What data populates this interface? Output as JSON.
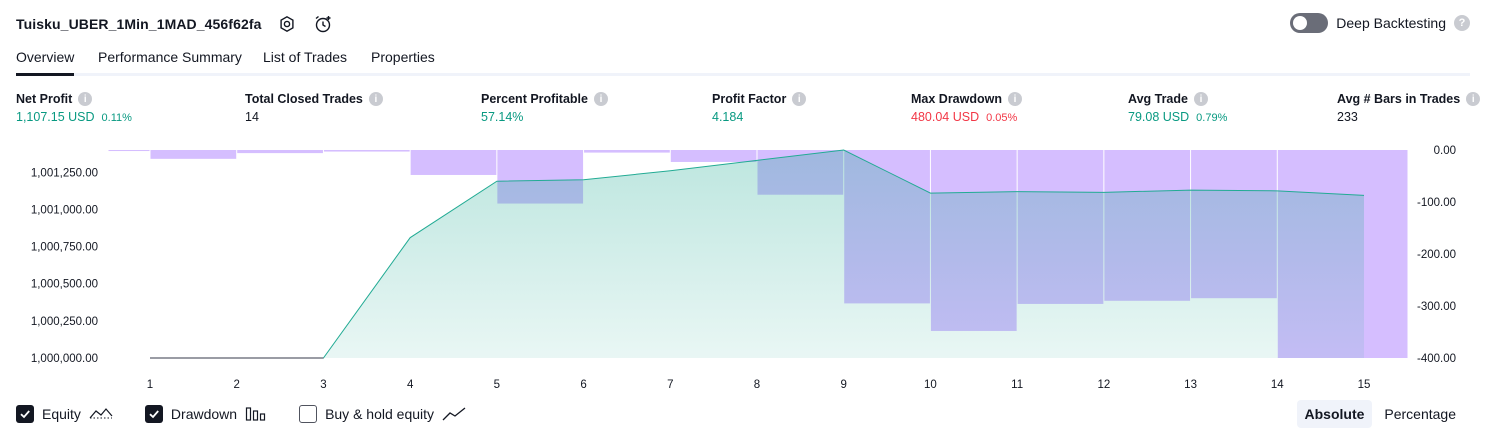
{
  "header": {
    "strategy_name": "Tuisku_UBER_1Min_1MAD_456f62fa",
    "settings_icon": "gear-icon",
    "alert_icon": "alarm-clock-add-icon",
    "deep_backtesting_label": "Deep Backtesting",
    "deep_backtesting_enabled": false
  },
  "tabs": [
    {
      "label": "Overview",
      "active": true
    },
    {
      "label": "Performance Summary",
      "active": false
    },
    {
      "label": "List of Trades",
      "active": false
    },
    {
      "label": "Properties",
      "active": false
    }
  ],
  "stats": [
    {
      "label": "Net Profit",
      "value": "1,107.15 USD",
      "pct": "0.11%",
      "color": "#089981"
    },
    {
      "label": "Total Closed Trades",
      "value": "14",
      "pct": "",
      "color": "#131722"
    },
    {
      "label": "Percent Profitable",
      "value": "57.14%",
      "pct": "",
      "color": "#089981"
    },
    {
      "label": "Profit Factor",
      "value": "4.184",
      "pct": "",
      "color": "#089981"
    },
    {
      "label": "Max Drawdown",
      "value": "480.04 USD",
      "pct": "0.05%",
      "color": "#f23645"
    },
    {
      "label": "Avg Trade",
      "value": "79.08 USD",
      "pct": "0.79%",
      "color": "#089981"
    },
    {
      "label": "Avg # Bars in Trades",
      "value": "233",
      "pct": "",
      "color": "#131722"
    }
  ],
  "chart_data": {
    "type": "area",
    "x": [
      1,
      2,
      3,
      4,
      5,
      6,
      7,
      8,
      9,
      10,
      11,
      12,
      13,
      14,
      15
    ],
    "left_axis": {
      "ticks": [
        "1,000,000.00",
        "1,000,250.00",
        "1,000,500.00",
        "1,000,750.00",
        "1,001,000.00",
        "1,001,250.00"
      ],
      "tick_values": [
        1000000,
        1000250,
        1000500,
        1000750,
        1001000,
        1001250
      ],
      "range": [
        1000000,
        1001400
      ]
    },
    "right_axis": {
      "ticks": [
        "0.00",
        "-100.00",
        "-200.00",
        "-300.00",
        "-400.00"
      ],
      "tick_values": [
        0,
        -100,
        -200,
        -300,
        -400
      ],
      "range": [
        -400,
        0
      ]
    },
    "series": [
      {
        "name": "Equity",
        "axis": "left",
        "color": "#22ab94",
        "values": [
          1000000,
          1000000,
          1000000,
          1000810,
          1001190,
          1001200,
          1001260,
          1001330,
          1001400,
          1001110,
          1001120,
          1001115,
          1001130,
          1001125,
          1001095
        ]
      },
      {
        "name": "Drawdown",
        "axis": "right",
        "color": "#b388ff",
        "values": [
          -2,
          -17,
          -6,
          -3,
          -48,
          -103,
          -5,
          -23,
          -86,
          -295,
          -348,
          -296,
          -290,
          -285,
          -400
        ]
      }
    ]
  },
  "legend": [
    {
      "label": "Equity",
      "checked": true,
      "icon": "equity-line-icon"
    },
    {
      "label": "Drawdown",
      "checked": true,
      "icon": "drawdown-bars-icon"
    },
    {
      "label": "Buy & hold equity",
      "checked": false,
      "icon": "buy-hold-line-icon"
    }
  ],
  "modes": [
    {
      "label": "Absolute",
      "active": true
    },
    {
      "label": "Percentage",
      "active": false
    }
  ]
}
